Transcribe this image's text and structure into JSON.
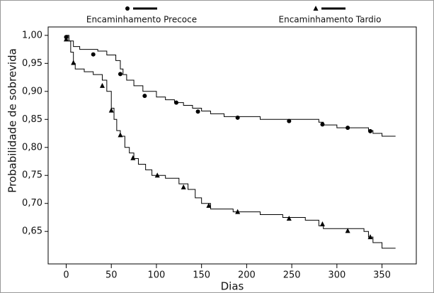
{
  "chart_data": {
    "type": "step",
    "xlabel": "Dias",
    "ylabel": "Probabilidade de sobrevida",
    "xlim": [
      -20,
      388
    ],
    "ylim": [
      0.592,
      1.015
    ],
    "xticks": [
      0,
      50,
      100,
      150,
      200,
      250,
      300,
      350
    ],
    "yticks": [
      {
        "value": 1.0,
        "label": "1,00"
      },
      {
        "value": 0.95,
        "label": "0,95"
      },
      {
        "value": 0.9,
        "label": "0,90"
      },
      {
        "value": 0.85,
        "label": "0,85"
      },
      {
        "value": 0.8,
        "label": "0,80"
      },
      {
        "value": 0.75,
        "label": "0,75"
      },
      {
        "value": 0.7,
        "label": "0,70"
      },
      {
        "value": 0.65,
        "label": "0,65"
      }
    ],
    "series": [
      {
        "name": "Encaminhamento Precoce",
        "color": "#000000",
        "marker": "circle",
        "x": [
          0,
          3,
          8,
          15,
          35,
          45,
          55,
          60,
          63,
          67,
          75,
          85,
          100,
          110,
          120,
          130,
          140,
          150,
          160,
          175,
          215,
          280,
          285,
          300,
          335,
          340,
          350,
          365
        ],
        "values": [
          1.0,
          0.99,
          0.98,
          0.975,
          0.972,
          0.965,
          0.955,
          0.94,
          0.93,
          0.92,
          0.91,
          0.9,
          0.89,
          0.885,
          0.88,
          0.875,
          0.87,
          0.865,
          0.86,
          0.855,
          0.85,
          0.845,
          0.84,
          0.835,
          0.83,
          0.825,
          0.82,
          0.82
        ],
        "marker_x": [
          0,
          30,
          60,
          87,
          122,
          146,
          190,
          247,
          284,
          312,
          337
        ],
        "marker_values": [
          0.997,
          0.966,
          0.931,
          0.892,
          0.88,
          0.864,
          0.853,
          0.847,
          0.841,
          0.835,
          0.829
        ]
      },
      {
        "name": "Encaminhamento Tardio",
        "color": "#000000",
        "marker": "triangle",
        "x": [
          0,
          3,
          5,
          8,
          10,
          20,
          30,
          40,
          45,
          50,
          53,
          56,
          60,
          65,
          70,
          75,
          80,
          88,
          95,
          110,
          125,
          135,
          143,
          150,
          160,
          185,
          215,
          240,
          265,
          280,
          285,
          330,
          335,
          340,
          350,
          365
        ],
        "values": [
          1.0,
          0.99,
          0.97,
          0.95,
          0.94,
          0.935,
          0.93,
          0.92,
          0.9,
          0.87,
          0.85,
          0.83,
          0.82,
          0.8,
          0.79,
          0.78,
          0.77,
          0.76,
          0.75,
          0.745,
          0.735,
          0.725,
          0.71,
          0.7,
          0.69,
          0.685,
          0.68,
          0.675,
          0.67,
          0.66,
          0.655,
          0.65,
          0.64,
          0.63,
          0.62,
          0.62
        ],
        "marker_x": [
          0,
          8,
          40,
          50,
          60,
          74,
          101,
          130,
          158,
          190,
          247,
          284,
          312,
          337
        ],
        "marker_values": [
          0.993,
          0.951,
          0.91,
          0.866,
          0.822,
          0.781,
          0.75,
          0.729,
          0.696,
          0.685,
          0.673,
          0.663,
          0.651,
          0.64
        ]
      }
    ]
  }
}
